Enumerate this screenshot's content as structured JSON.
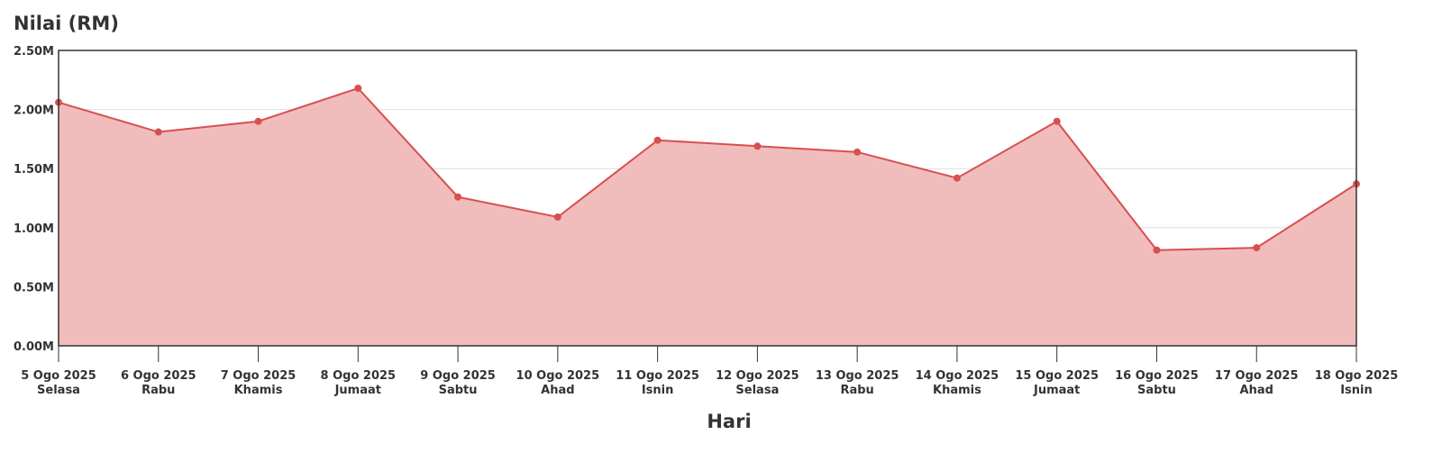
{
  "chart_data": {
    "type": "area",
    "title": "Nilai (RM)",
    "x_label": "Hari",
    "categories": [
      [
        "5 Ogo 2025",
        "Selasa"
      ],
      [
        "6 Ogo 2025",
        "Rabu"
      ],
      [
        "7 Ogo 2025",
        "Khamis"
      ],
      [
        "8 Ogo 2025",
        "Jumaat"
      ],
      [
        "9 Ogo 2025",
        "Sabtu"
      ],
      [
        "10 Ogo 2025",
        "Ahad"
      ],
      [
        "11 Ogo 2025",
        "Isnin"
      ],
      [
        "12 Ogo 2025",
        "Selasa"
      ],
      [
        "13 Ogo 2025",
        "Rabu"
      ],
      [
        "14 Ogo 2025",
        "Khamis"
      ],
      [
        "15 Ogo 2025",
        "Jumaat"
      ],
      [
        "16 Ogo 2025",
        "Sabtu"
      ],
      [
        "17 Ogo 2025",
        "Ahad"
      ],
      [
        "18 Ogo 2025",
        "Isnin"
      ]
    ],
    "values": [
      2060000,
      1810000,
      1900000,
      2180000,
      1260000,
      1090000,
      1740000,
      1690000,
      1640000,
      1420000,
      1900000,
      810000,
      830000,
      1370000
    ],
    "color": "#d65050",
    "fill_color": "#f0b8b8",
    "ylim": [
      0,
      2500000
    ],
    "yticks": [
      {
        "value": 0,
        "label": "0.00M"
      },
      {
        "value": 500000,
        "label": "0.50M"
      },
      {
        "value": 1000000,
        "label": "1.00M"
      },
      {
        "value": 1500000,
        "label": "1.50M"
      },
      {
        "value": 2000000,
        "label": "2.00M"
      },
      {
        "value": 2500000,
        "label": "2.50M"
      }
    ],
    "grid": true
  }
}
